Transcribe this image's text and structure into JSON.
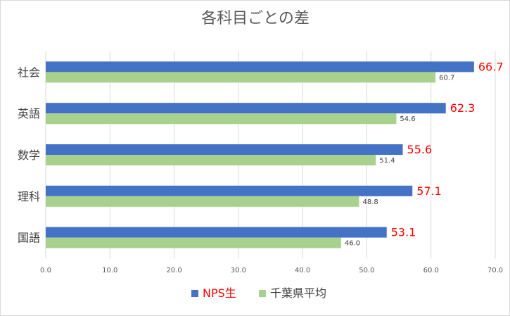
{
  "chart_data": {
    "type": "bar",
    "orientation": "horizontal",
    "title": "各科目ごとの差",
    "categories": [
      "社会",
      "英語",
      "数学",
      "理科",
      "国語"
    ],
    "series": [
      {
        "name": "NPS生",
        "values": [
          66.7,
          62.3,
          55.6,
          57.1,
          53.1
        ],
        "labels": [
          "66.7",
          "62.3",
          "55.6",
          "57.1",
          "53.1"
        ],
        "color": "#4472c4",
        "label_color": "#ff0000"
      },
      {
        "name": "千葉県平均",
        "values": [
          60.7,
          54.6,
          51.4,
          48.8,
          46.0
        ],
        "labels": [
          "60.7",
          "54.6",
          "51.4",
          "48.8",
          "46.0"
        ],
        "color": "#a9d18e",
        "label_color": "#404040"
      }
    ],
    "xlim": [
      0,
      70
    ],
    "xticks": [
      "0.0",
      "10.0",
      "20.0",
      "30.0",
      "40.0",
      "50.0",
      "60.0",
      "70.0"
    ],
    "grid": true,
    "legend": "bottom",
    "legend_label_colors": [
      "#ff0000",
      "#404040"
    ],
    "title_color": "#595959",
    "grid_color": "#d9d9d9"
  }
}
